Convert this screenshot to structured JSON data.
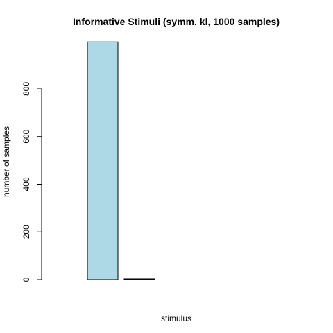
{
  "chart_data": {
    "type": "bar",
    "title": "Informative Stimuli (symm. kl, 1000 samples)",
    "xlabel": "stimulus",
    "ylabel": "number of samples",
    "categories": [
      "",
      "",
      "",
      "",
      "",
      "",
      ""
    ],
    "values": [
      0,
      997,
      3,
      0,
      0,
      0,
      0
    ],
    "ylim": [
      0,
      1000
    ],
    "yticks": [
      0,
      200,
      400,
      600,
      800
    ],
    "grid": false,
    "legend": "none",
    "bar_fill": "#add8e6",
    "bar_stroke": "#000000"
  }
}
